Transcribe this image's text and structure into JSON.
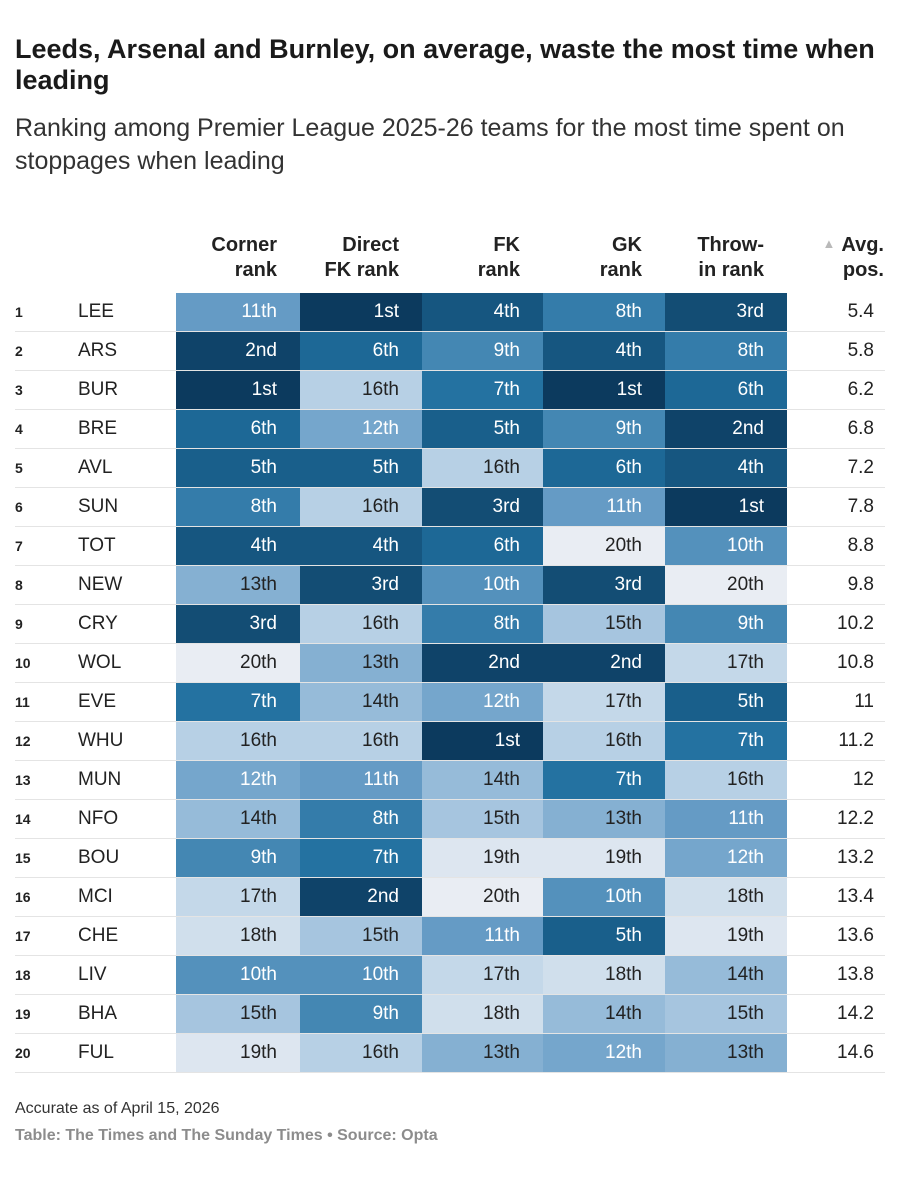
{
  "title": "Leeds, Arsenal and Burnley, on average, waste the most time when leading",
  "subtitle": "Ranking among Premier League 2025-26 teams for the most time spent on stoppages when leading",
  "chart_data": {
    "type": "table",
    "columns": [
      {
        "key": "corner",
        "line1": "Corner",
        "line2": "rank"
      },
      {
        "key": "direct_fk",
        "line1": "Direct",
        "line2": "FK rank"
      },
      {
        "key": "fk",
        "line1": "FK",
        "line2": "rank"
      },
      {
        "key": "gk",
        "line1": "GK",
        "line2": "rank"
      },
      {
        "key": "throw_in",
        "line1": "Throw-",
        "line2": "in rank"
      }
    ],
    "avg_header": {
      "line1": "Avg.",
      "line2": "pos.",
      "sort_indicator": "▲"
    },
    "rows": [
      {
        "rank": "1",
        "team": "LEE",
        "values": [
          11,
          1,
          4,
          8,
          3
        ],
        "labels": [
          "11th",
          "1st",
          "4th",
          "8th",
          "3rd"
        ],
        "avg": "5.4"
      },
      {
        "rank": "2",
        "team": "ARS",
        "values": [
          2,
          6,
          9,
          4,
          8
        ],
        "labels": [
          "2nd",
          "6th",
          "9th",
          "4th",
          "8th"
        ],
        "avg": "5.8"
      },
      {
        "rank": "3",
        "team": "BUR",
        "values": [
          1,
          16,
          7,
          1,
          6
        ],
        "labels": [
          "1st",
          "16th",
          "7th",
          "1st",
          "6th"
        ],
        "avg": "6.2"
      },
      {
        "rank": "4",
        "team": "BRE",
        "values": [
          6,
          12,
          5,
          9,
          2
        ],
        "labels": [
          "6th",
          "12th",
          "5th",
          "9th",
          "2nd"
        ],
        "avg": "6.8"
      },
      {
        "rank": "5",
        "team": "AVL",
        "values": [
          5,
          5,
          16,
          6,
          4
        ],
        "labels": [
          "5th",
          "5th",
          "16th",
          "6th",
          "4th"
        ],
        "avg": "7.2"
      },
      {
        "rank": "6",
        "team": "SUN",
        "values": [
          8,
          16,
          3,
          11,
          1
        ],
        "labels": [
          "8th",
          "16th",
          "3rd",
          "11th",
          "1st"
        ],
        "avg": "7.8"
      },
      {
        "rank": "7",
        "team": "TOT",
        "values": [
          4,
          4,
          6,
          20,
          10
        ],
        "labels": [
          "4th",
          "4th",
          "6th",
          "20th",
          "10th"
        ],
        "avg": "8.8"
      },
      {
        "rank": "8",
        "team": "NEW",
        "values": [
          13,
          3,
          10,
          3,
          20
        ],
        "labels": [
          "13th",
          "3rd",
          "10th",
          "3rd",
          "20th"
        ],
        "avg": "9.8"
      },
      {
        "rank": "9",
        "team": "CRY",
        "values": [
          3,
          16,
          8,
          15,
          9
        ],
        "labels": [
          "3rd",
          "16th",
          "8th",
          "15th",
          "9th"
        ],
        "avg": "10.2"
      },
      {
        "rank": "10",
        "team": "WOL",
        "values": [
          20,
          13,
          2,
          2,
          17
        ],
        "labels": [
          "20th",
          "13th",
          "2nd",
          "2nd",
          "17th"
        ],
        "avg": "10.8"
      },
      {
        "rank": "11",
        "team": "EVE",
        "values": [
          7,
          14,
          12,
          17,
          5
        ],
        "labels": [
          "7th",
          "14th",
          "12th",
          "17th",
          "5th"
        ],
        "avg": "11"
      },
      {
        "rank": "12",
        "team": "WHU",
        "values": [
          16,
          16,
          1,
          16,
          7
        ],
        "labels": [
          "16th",
          "16th",
          "1st",
          "16th",
          "7th"
        ],
        "avg": "11.2"
      },
      {
        "rank": "13",
        "team": "MUN",
        "values": [
          12,
          11,
          14,
          7,
          16
        ],
        "labels": [
          "12th",
          "11th",
          "14th",
          "7th",
          "16th"
        ],
        "avg": "12"
      },
      {
        "rank": "14",
        "team": "NFO",
        "values": [
          14,
          8,
          15,
          13,
          11
        ],
        "labels": [
          "14th",
          "8th",
          "15th",
          "13th",
          "11th"
        ],
        "avg": "12.2"
      },
      {
        "rank": "15",
        "team": "BOU",
        "values": [
          9,
          7,
          19,
          19,
          12
        ],
        "labels": [
          "9th",
          "7th",
          "19th",
          "19th",
          "12th"
        ],
        "avg": "13.2"
      },
      {
        "rank": "16",
        "team": "MCI",
        "values": [
          17,
          2,
          20,
          10,
          18
        ],
        "labels": [
          "17th",
          "2nd",
          "20th",
          "10th",
          "18th"
        ],
        "avg": "13.4"
      },
      {
        "rank": "17",
        "team": "CHE",
        "values": [
          18,
          15,
          11,
          5,
          19
        ],
        "labels": [
          "18th",
          "15th",
          "11th",
          "5th",
          "19th"
        ],
        "avg": "13.6"
      },
      {
        "rank": "18",
        "team": "LIV",
        "values": [
          10,
          10,
          17,
          18,
          14
        ],
        "labels": [
          "10th",
          "10th",
          "17th",
          "18th",
          "14th"
        ],
        "avg": "13.8"
      },
      {
        "rank": "19",
        "team": "BHA",
        "values": [
          15,
          9,
          18,
          14,
          15
        ],
        "labels": [
          "15th",
          "9th",
          "18th",
          "14th",
          "15th"
        ],
        "avg": "14.2"
      },
      {
        "rank": "20",
        "team": "FUL",
        "values": [
          19,
          16,
          13,
          12,
          13
        ],
        "labels": [
          "19th",
          "16th",
          "13th",
          "12th",
          "13th"
        ],
        "avg": "14.6"
      }
    ],
    "color_scale": {
      "min_rank": 1,
      "max_rank": 20,
      "dark": "#0c3a5e",
      "light": "#e9edf3"
    }
  },
  "footer": {
    "note": "Accurate as of April 15, 2026",
    "source": "Table: The Times and The Sunday Times • Source: Opta"
  }
}
